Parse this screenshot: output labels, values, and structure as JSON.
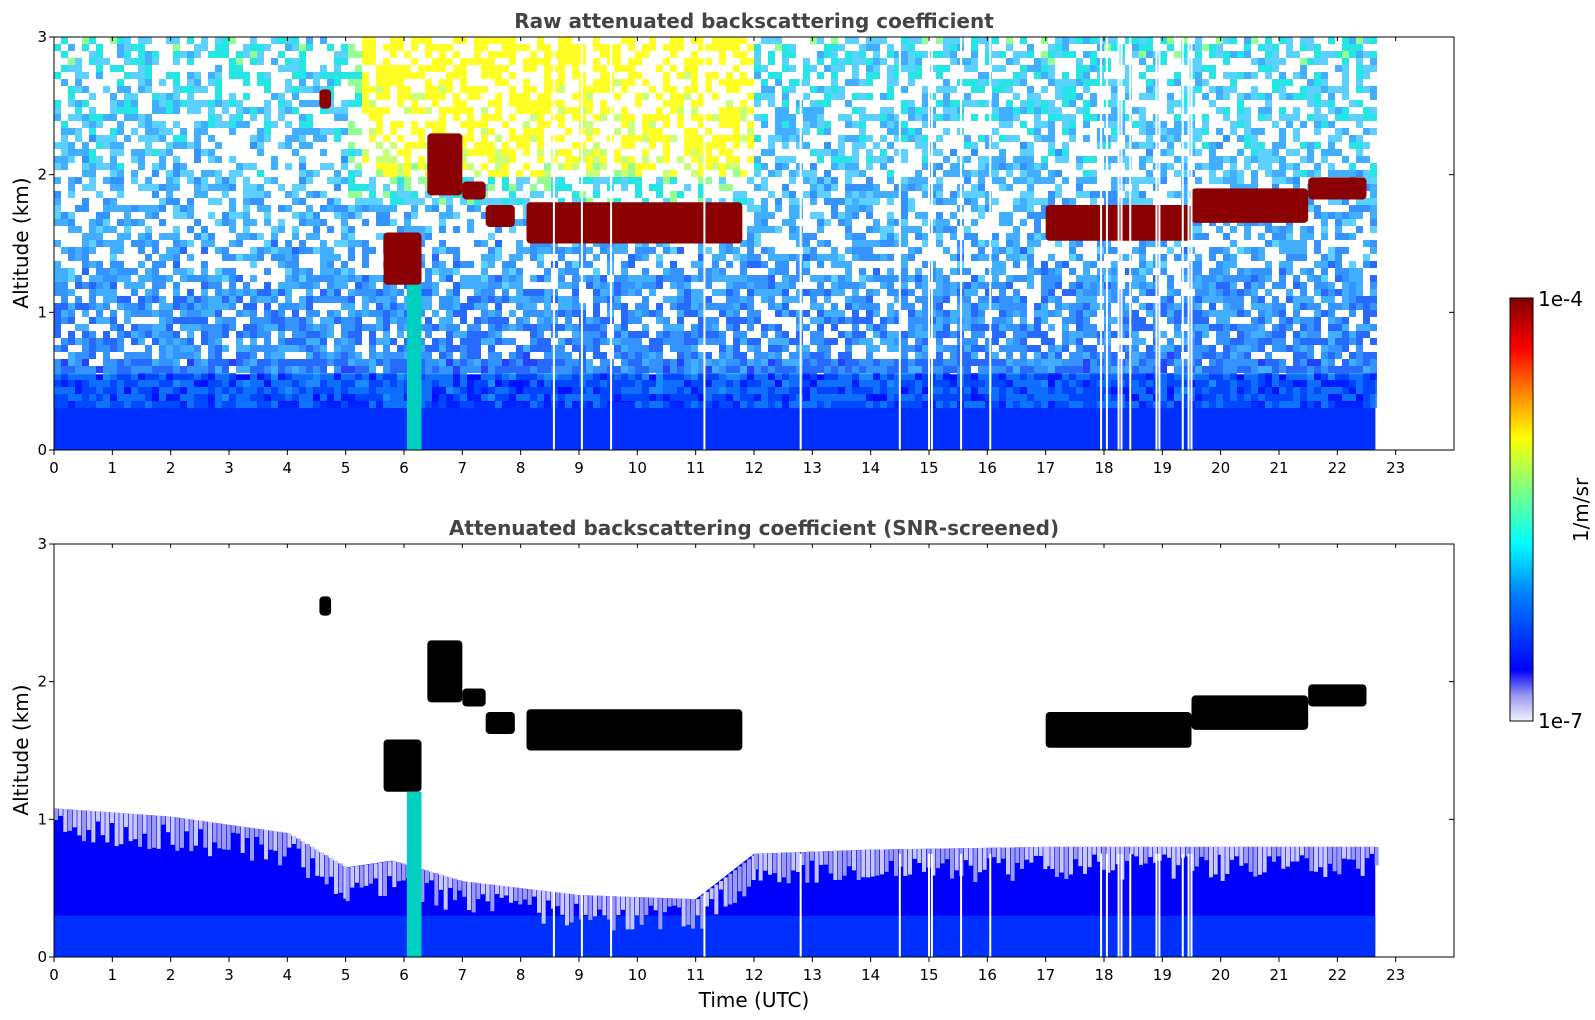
{
  "chart_data": [
    {
      "type": "heatmap",
      "title": "Raw attenuated backscattering coefficient",
      "xlabel": "",
      "ylabel": "Altitude (km)",
      "xlim": [
        0,
        24
      ],
      "ylim": [
        0,
        3
      ],
      "x_ticks": [
        "0",
        "1",
        "2",
        "3",
        "4",
        "5",
        "6",
        "7",
        "8",
        "9",
        "10",
        "11",
        "12",
        "13",
        "14",
        "15",
        "16",
        "17",
        "18",
        "19",
        "20",
        "21",
        "22",
        "23"
      ],
      "y_ticks": [
        "0",
        "1",
        "2",
        "3"
      ],
      "data_end_time": 22.65,
      "dropout_times": [
        8.57,
        9.05,
        9.55,
        11.15,
        12.8,
        14.5,
        15.0,
        15.05,
        15.55,
        16.05,
        17.95,
        18.05,
        18.25,
        18.3,
        18.45,
        18.9,
        18.95,
        19.35,
        19.45,
        19.5
      ],
      "features": {
        "cloud_layers": [
          {
            "t": [
              4.55,
              4.75
            ],
            "base_km": 2.48,
            "top_km": 2.62
          },
          {
            "t": [
              5.65,
              6.3
            ],
            "base_km": 1.2,
            "top_km": 1.58
          },
          {
            "t": [
              6.4,
              7.0
            ],
            "base_km": 1.85,
            "top_km": 2.3
          },
          {
            "t": [
              7.0,
              7.4
            ],
            "base_km": 1.82,
            "top_km": 1.95
          },
          {
            "t": [
              7.4,
              7.9
            ],
            "base_km": 1.62,
            "top_km": 1.78
          },
          {
            "t": [
              8.1,
              11.8
            ],
            "base_km": 1.5,
            "top_km": 1.8
          },
          {
            "t": [
              17.0,
              19.5
            ],
            "base_km": 1.52,
            "top_km": 1.78
          },
          {
            "t": [
              19.5,
              21.5
            ],
            "base_km": 1.65,
            "top_km": 1.9
          },
          {
            "t": [
              21.5,
              22.5
            ],
            "base_km": 1.82,
            "top_km": 1.98
          }
        ],
        "precipitation_shaft": {
          "t": [
            6.05,
            6.3
          ],
          "from_km": 1.2,
          "to_km": 0.0
        }
      },
      "colorbar": {
        "label": "1/m/sr",
        "max_label": "1e-4",
        "min_label": "1e-7",
        "scale": "log",
        "colormap": "jet"
      }
    },
    {
      "type": "heatmap",
      "title": "Attenuated backscattering coefficient (SNR-screened)",
      "xlabel": "Time (UTC)",
      "ylabel": "Altitude (km)",
      "xlim": [
        0,
        24
      ],
      "ylim": [
        0,
        3
      ],
      "x_ticks": [
        "0",
        "1",
        "2",
        "3",
        "4",
        "5",
        "6",
        "7",
        "8",
        "9",
        "10",
        "11",
        "12",
        "13",
        "14",
        "15",
        "16",
        "17",
        "18",
        "19",
        "20",
        "21",
        "22",
        "23"
      ],
      "y_ticks": [
        "0",
        "1",
        "2",
        "3"
      ],
      "data_end_time": 22.65,
      "boundary_layer_top_km": [
        {
          "t": 0,
          "km": 1.08
        },
        {
          "t": 2,
          "km": 1.02
        },
        {
          "t": 4,
          "km": 0.9
        },
        {
          "t": 5,
          "km": 0.65
        },
        {
          "t": 5.8,
          "km": 0.7
        },
        {
          "t": 7,
          "km": 0.55
        },
        {
          "t": 9,
          "km": 0.45
        },
        {
          "t": 11,
          "km": 0.42
        },
        {
          "t": 12,
          "km": 0.75
        },
        {
          "t": 14,
          "km": 0.78
        },
        {
          "t": 17,
          "km": 0.8
        },
        {
          "t": 20,
          "km": 0.8
        },
        {
          "t": 22,
          "km": 0.8
        },
        {
          "t": 22.65,
          "km": 0.8
        }
      ]
    }
  ],
  "colors": {
    "colormap_stops": [
      "#f2f2ff",
      "#9a9af0",
      "#0000ff",
      "#0080ff",
      "#00ffff",
      "#80ff80",
      "#ffff00",
      "#ff8000",
      "#ff0000",
      "#800000"
    ],
    "cloud_top_panel": "#8b0000",
    "cloud_bottom_panel": "#000000"
  }
}
